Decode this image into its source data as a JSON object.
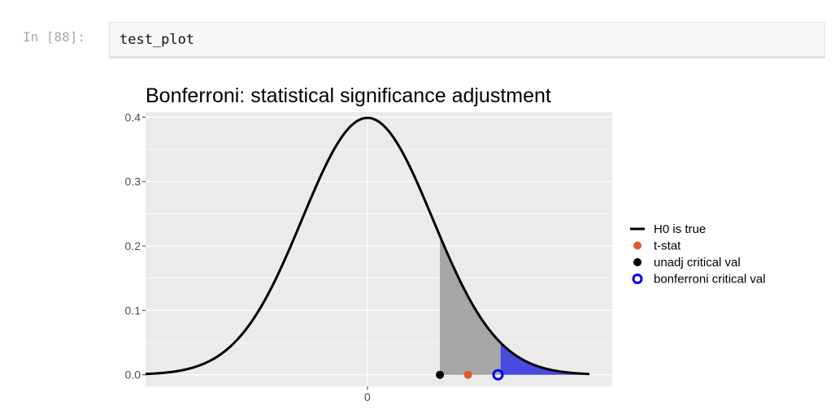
{
  "cell": {
    "prompt": "In [88]:",
    "code": "test_plot"
  },
  "chart_data": {
    "type": "line",
    "title": "Bonferroni: statistical significance adjustment",
    "xlabel": "",
    "ylabel": "",
    "xlim": [
      -3.4,
      3.75
    ],
    "ylim": [
      -0.018,
      0.408
    ],
    "x_ticks": [
      0
    ],
    "x_tick_labels": [
      "0"
    ],
    "y_ticks": [
      0,
      0.1,
      0.2,
      0.3,
      0.4
    ],
    "y_tick_labels": [
      "0.0",
      "0.1",
      "0.2",
      "0.3",
      "0.4"
    ],
    "grid": true,
    "legend_position": "right",
    "curve": {
      "name": "H0 is true",
      "distribution": "standard normal density",
      "x_range": [
        -3.4,
        3.4
      ],
      "color": "#000000"
    },
    "shaded_regions": [
      {
        "from": 1.11,
        "to": 2.04,
        "color": "#a6a6a6"
      },
      {
        "from": 2.04,
        "to": 3.4,
        "color": "#4a4ae0"
      }
    ],
    "points": [
      {
        "name": "t-stat",
        "x": 1.54,
        "y": 0,
        "color": "#e25a2f",
        "style": "filled"
      },
      {
        "name": "unadj critical val",
        "x": 1.11,
        "y": 0,
        "color": "#000000",
        "style": "filled"
      },
      {
        "name": "bonferroni critical val",
        "x": 2.0,
        "y": 0,
        "color": "#0000ee",
        "style": "ring"
      }
    ],
    "legend": [
      {
        "label": "H0 is true",
        "kind": "line",
        "color": "#000000"
      },
      {
        "label": "t-stat",
        "kind": "dot",
        "color": "#e25a2f"
      },
      {
        "label": "unadj critical val",
        "kind": "dot",
        "color": "#000000"
      },
      {
        "label": "bonferroni critical val",
        "kind": "ring",
        "color": "#0000ee"
      }
    ],
    "colors": {
      "panel_background": "#ebebeb",
      "grid": "#ffffff",
      "axis_text": "#4d4d4d"
    }
  }
}
